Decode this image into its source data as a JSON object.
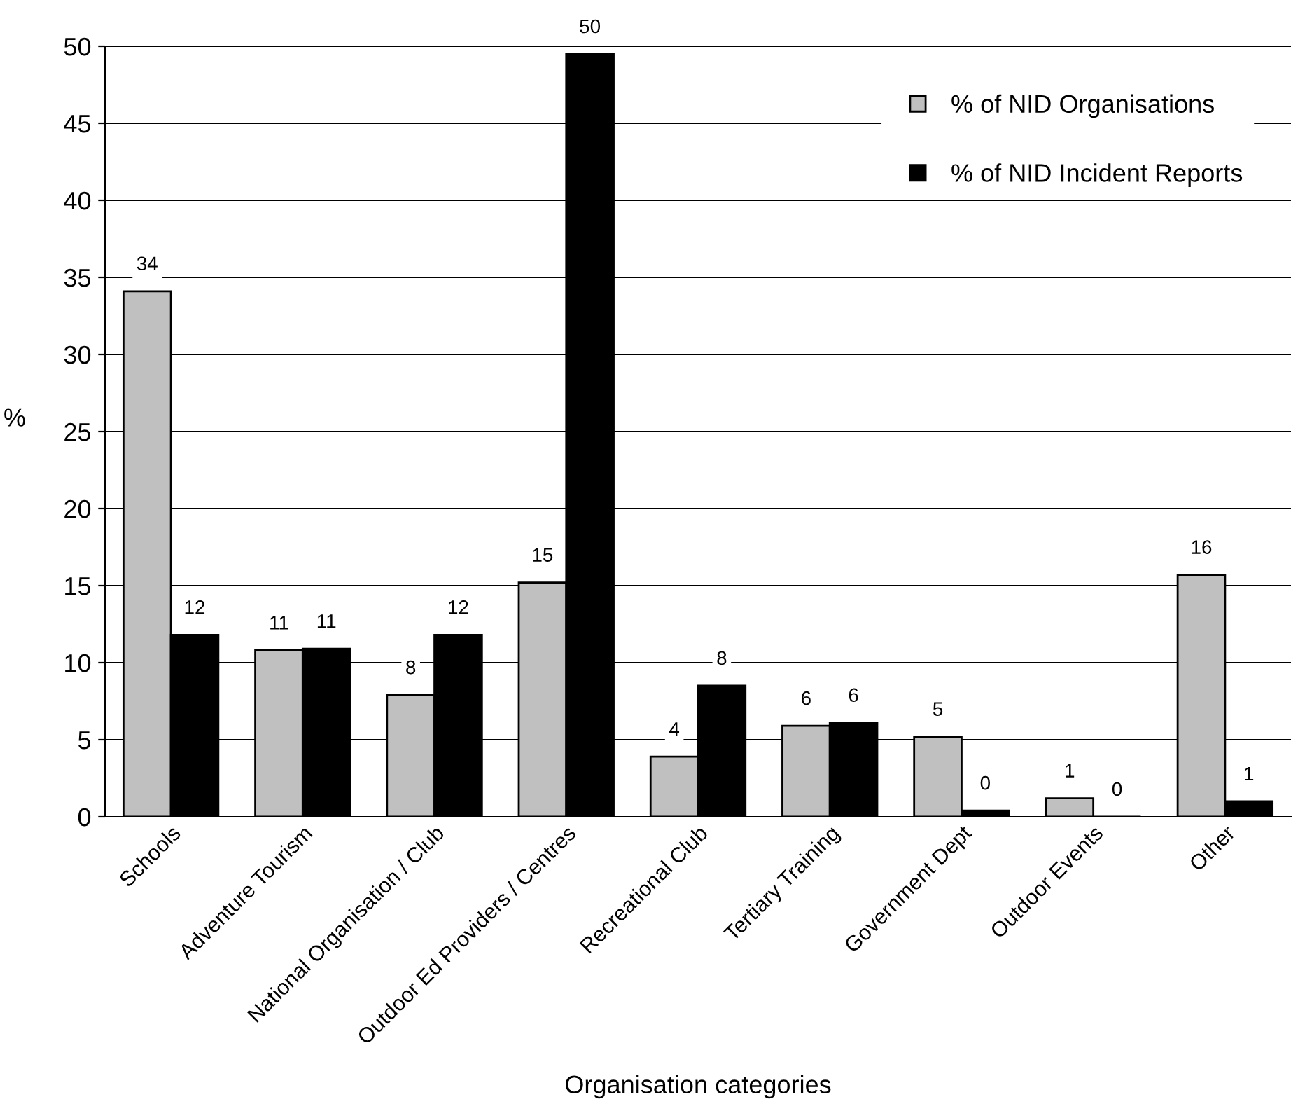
{
  "chart_data": {
    "type": "bar",
    "xlabel": "Organisation categories",
    "ylabel": "%",
    "categories": [
      "Schools",
      "Adventure Tourism",
      "National Organisation / Club",
      "Outdoor Ed Providers / Centres",
      "Recreational Club",
      "Tertiary Training",
      "Government Dept",
      "Outdoor Events",
      "Other"
    ],
    "series": [
      {
        "name": "% of NID Organisations",
        "color": "#c0c0c0",
        "values": [
          34.1,
          10.8,
          7.9,
          15.2,
          3.9,
          5.9,
          5.2,
          1.2,
          15.7
        ],
        "value_labels": [
          "34",
          "11",
          "8",
          "15",
          "4",
          "6",
          "5",
          "1",
          "16"
        ]
      },
      {
        "name": "% of NID Incident Reports",
        "color": "#000000",
        "values": [
          11.8,
          10.9,
          11.8,
          49.5,
          8.5,
          6.1,
          0.4,
          0,
          1.0
        ],
        "value_labels": [
          "12",
          "11",
          "12",
          "50",
          "8",
          "6",
          "0",
          "0",
          "1"
        ]
      }
    ],
    "ylim": [
      0,
      50
    ],
    "yticks": [
      0,
      5,
      10,
      15,
      20,
      25,
      30,
      35,
      40,
      45,
      50
    ],
    "grid": "y",
    "legend": "top right"
  }
}
